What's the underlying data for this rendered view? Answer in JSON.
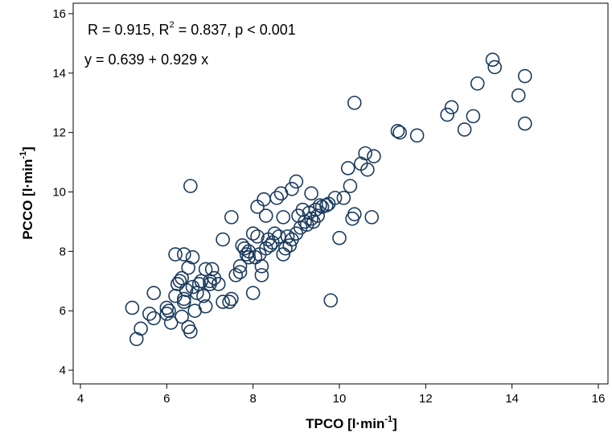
{
  "chart_data": {
    "type": "scatter",
    "xlabel": {
      "main": "TPCO [l·min",
      "sup": "-1",
      "tail": "]"
    },
    "ylabel": {
      "main": "PCCO [l·min",
      "sup": "-1",
      "tail": "]"
    },
    "xlim": [
      4,
      16
    ],
    "ylim": [
      4,
      16
    ],
    "xticks": [
      "4",
      "6",
      "8",
      "10",
      "12",
      "14",
      "16"
    ],
    "yticks": [
      "4",
      "6",
      "8",
      "10",
      "12",
      "14",
      "16"
    ],
    "annotations": {
      "stats_pre": "R = 0.915,  R",
      "stats_sup": "2",
      "stats_post": " = 0.837, p < 0.001",
      "equation": "y = 0.639 + 0.929 x"
    },
    "marker_color": "#1a3a5c",
    "grid": false,
    "series": [
      {
        "points": [
          [
            5.2,
            6.1
          ],
          [
            5.3,
            5.05
          ],
          [
            5.4,
            5.4
          ],
          [
            5.6,
            5.9
          ],
          [
            5.7,
            6.6
          ],
          [
            5.7,
            5.75
          ],
          [
            6.0,
            6.1
          ],
          [
            6.0,
            5.9
          ],
          [
            6.1,
            5.6
          ],
          [
            6.05,
            6.0
          ],
          [
            6.2,
            7.9
          ],
          [
            6.2,
            6.5
          ],
          [
            6.25,
            6.9
          ],
          [
            6.3,
            7.0
          ],
          [
            6.35,
            7.1
          ],
          [
            6.35,
            5.8
          ],
          [
            6.4,
            6.4
          ],
          [
            6.4,
            6.3
          ],
          [
            6.4,
            7.9
          ],
          [
            6.45,
            6.7
          ],
          [
            6.5,
            7.45
          ],
          [
            6.5,
            5.45
          ],
          [
            6.55,
            10.2
          ],
          [
            6.55,
            5.3
          ],
          [
            6.6,
            6.8
          ],
          [
            6.6,
            7.8
          ],
          [
            6.65,
            6.0
          ],
          [
            6.7,
            6.6
          ],
          [
            6.75,
            6.9
          ],
          [
            6.8,
            7.0
          ],
          [
            6.85,
            6.5
          ],
          [
            6.9,
            7.4
          ],
          [
            6.9,
            6.15
          ],
          [
            7.0,
            6.9
          ],
          [
            7.0,
            7.0
          ],
          [
            7.05,
            7.4
          ],
          [
            7.1,
            7.1
          ],
          [
            7.2,
            6.9
          ],
          [
            7.3,
            6.3
          ],
          [
            7.3,
            8.4
          ],
          [
            7.45,
            6.3
          ],
          [
            7.5,
            6.4
          ],
          [
            7.5,
            9.15
          ],
          [
            7.6,
            7.2
          ],
          [
            7.7,
            7.3
          ],
          [
            7.7,
            7.5
          ],
          [
            7.75,
            8.2
          ],
          [
            7.8,
            8.1
          ],
          [
            7.85,
            7.9
          ],
          [
            7.9,
            7.8
          ],
          [
            7.9,
            8.0
          ],
          [
            8.0,
            8.6
          ],
          [
            8.0,
            6.6
          ],
          [
            8.05,
            7.8
          ],
          [
            8.1,
            8.5
          ],
          [
            8.1,
            9.5
          ],
          [
            8.15,
            7.9
          ],
          [
            8.2,
            7.2
          ],
          [
            8.2,
            7.5
          ],
          [
            8.25,
            9.75
          ],
          [
            8.3,
            8.1
          ],
          [
            8.3,
            9.2
          ],
          [
            8.35,
            8.4
          ],
          [
            8.4,
            8.2
          ],
          [
            8.45,
            8.3
          ],
          [
            8.5,
            8.6
          ],
          [
            8.55,
            9.8
          ],
          [
            8.6,
            8.5
          ],
          [
            8.65,
            9.95
          ],
          [
            8.7,
            7.9
          ],
          [
            8.7,
            9.15
          ],
          [
            8.75,
            8.1
          ],
          [
            8.8,
            8.5
          ],
          [
            8.85,
            8.2
          ],
          [
            8.9,
            10.1
          ],
          [
            8.9,
            8.4
          ],
          [
            9.0,
            8.6
          ],
          [
            9.0,
            10.35
          ],
          [
            9.05,
            9.2
          ],
          [
            9.1,
            8.8
          ],
          [
            9.15,
            9.4
          ],
          [
            9.2,
            9.0
          ],
          [
            9.25,
            8.9
          ],
          [
            9.3,
            9.3
          ],
          [
            9.35,
            9.1
          ],
          [
            9.35,
            9.95
          ],
          [
            9.4,
            9.0
          ],
          [
            9.45,
            9.4
          ],
          [
            9.5,
            9.2
          ],
          [
            9.55,
            9.55
          ],
          [
            9.6,
            9.5
          ],
          [
            9.7,
            9.55
          ],
          [
            9.75,
            9.6
          ],
          [
            9.8,
            6.35
          ],
          [
            9.9,
            9.8
          ],
          [
            10.0,
            8.45
          ],
          [
            10.1,
            9.8
          ],
          [
            10.2,
            10.8
          ],
          [
            10.25,
            10.2
          ],
          [
            10.3,
            9.1
          ],
          [
            10.35,
            9.25
          ],
          [
            10.35,
            13.0
          ],
          [
            10.5,
            10.95
          ],
          [
            10.6,
            11.3
          ],
          [
            10.65,
            10.75
          ],
          [
            10.75,
            9.15
          ],
          [
            10.8,
            11.2
          ],
          [
            11.35,
            12.05
          ],
          [
            11.4,
            12.0
          ],
          [
            11.8,
            11.9
          ],
          [
            12.5,
            12.6
          ],
          [
            12.6,
            12.85
          ],
          [
            12.9,
            12.1
          ],
          [
            13.1,
            12.55
          ],
          [
            13.2,
            13.65
          ],
          [
            13.55,
            14.45
          ],
          [
            13.6,
            14.2
          ],
          [
            14.15,
            13.25
          ],
          [
            14.3,
            13.9
          ],
          [
            14.3,
            12.3
          ]
        ]
      }
    ]
  }
}
